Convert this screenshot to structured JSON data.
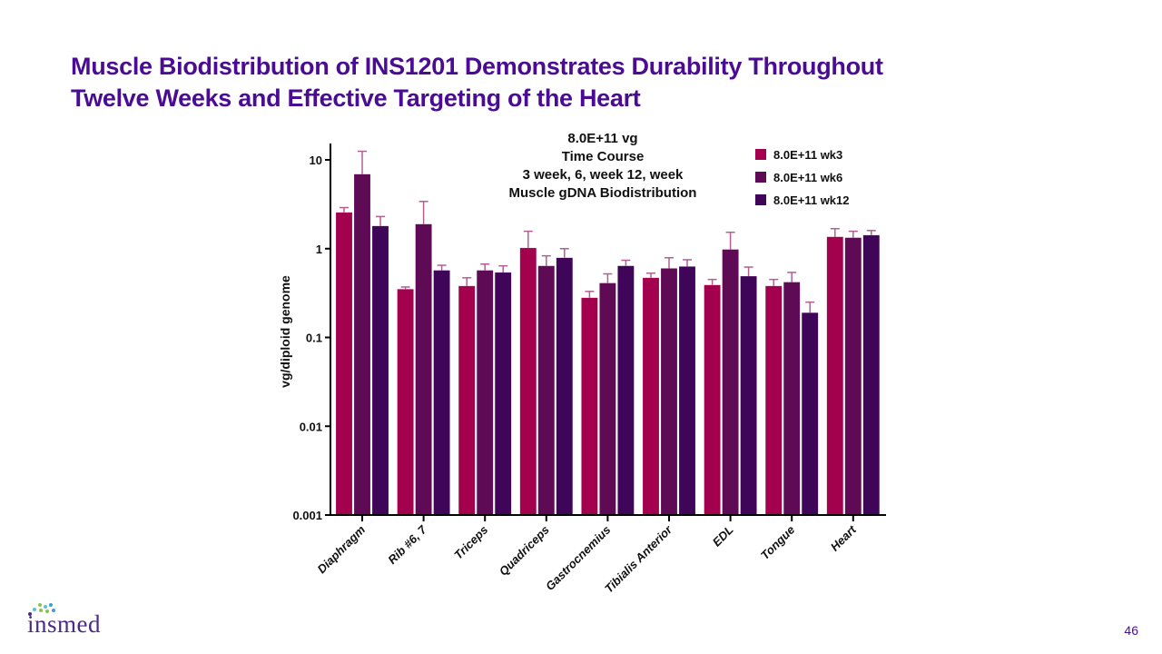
{
  "slide": {
    "title_lines": [
      "Muscle Biodistribution of INS1201 Demonstrates Durability Throughout",
      "Twelve Weeks and Effective Targeting of the  Heart"
    ],
    "page_number": "46",
    "logo_text": "insmed",
    "colors": {
      "title": "#4B0C94",
      "logo": "#4a2a86"
    }
  },
  "chart_data": {
    "type": "bar",
    "title_lines": [
      "8.0E+11 vg",
      "Time Course",
      "3 week, 6, week 12, week",
      "Muscle gDNA Biodistribution"
    ],
    "xlabel": "",
    "ylabel": "vg/diploid genome",
    "yscale": "log",
    "ylim": [
      0.001,
      10
    ],
    "yticks": [
      10,
      1,
      0.1,
      0.01,
      0.001
    ],
    "ytick_labels": [
      "10",
      "1",
      "0.1",
      "0.01",
      "0.001"
    ],
    "legend_position": "top-right",
    "categories": [
      "Diaphragm",
      "Rib #6, 7",
      "Triceps",
      "Quadriceps",
      "Gastrocnemius",
      "Tibialis Anterior",
      "EDL",
      "Tongue",
      "Heart"
    ],
    "series": [
      {
        "name": "8.0E+11 wk3",
        "color": "#A3004E",
        "values": [
          2.56,
          0.35,
          0.38,
          1.02,
          0.28,
          0.47,
          0.39,
          0.38,
          1.36
        ],
        "error_upper": [
          2.9,
          0.37,
          0.47,
          1.57,
          0.33,
          0.53,
          0.45,
          0.45,
          1.68
        ]
      },
      {
        "name": "8.0E+11 wk6",
        "color": "#5E0A55",
        "values": [
          6.9,
          1.89,
          0.57,
          0.64,
          0.41,
          0.6,
          0.98,
          0.42,
          1.33
        ],
        "error_upper": [
          12.5,
          3.4,
          0.67,
          0.83,
          0.52,
          0.79,
          1.53,
          0.54,
          1.57
        ]
      },
      {
        "name": "8.0E+11 wk12",
        "color": "#3E0558",
        "values": [
          1.8,
          0.57,
          0.54,
          0.79,
          0.64,
          0.63,
          0.49,
          0.19,
          1.42
        ],
        "error_upper": [
          2.3,
          0.65,
          0.64,
          1.0,
          0.74,
          0.75,
          0.62,
          0.25,
          1.6
        ]
      }
    ]
  }
}
